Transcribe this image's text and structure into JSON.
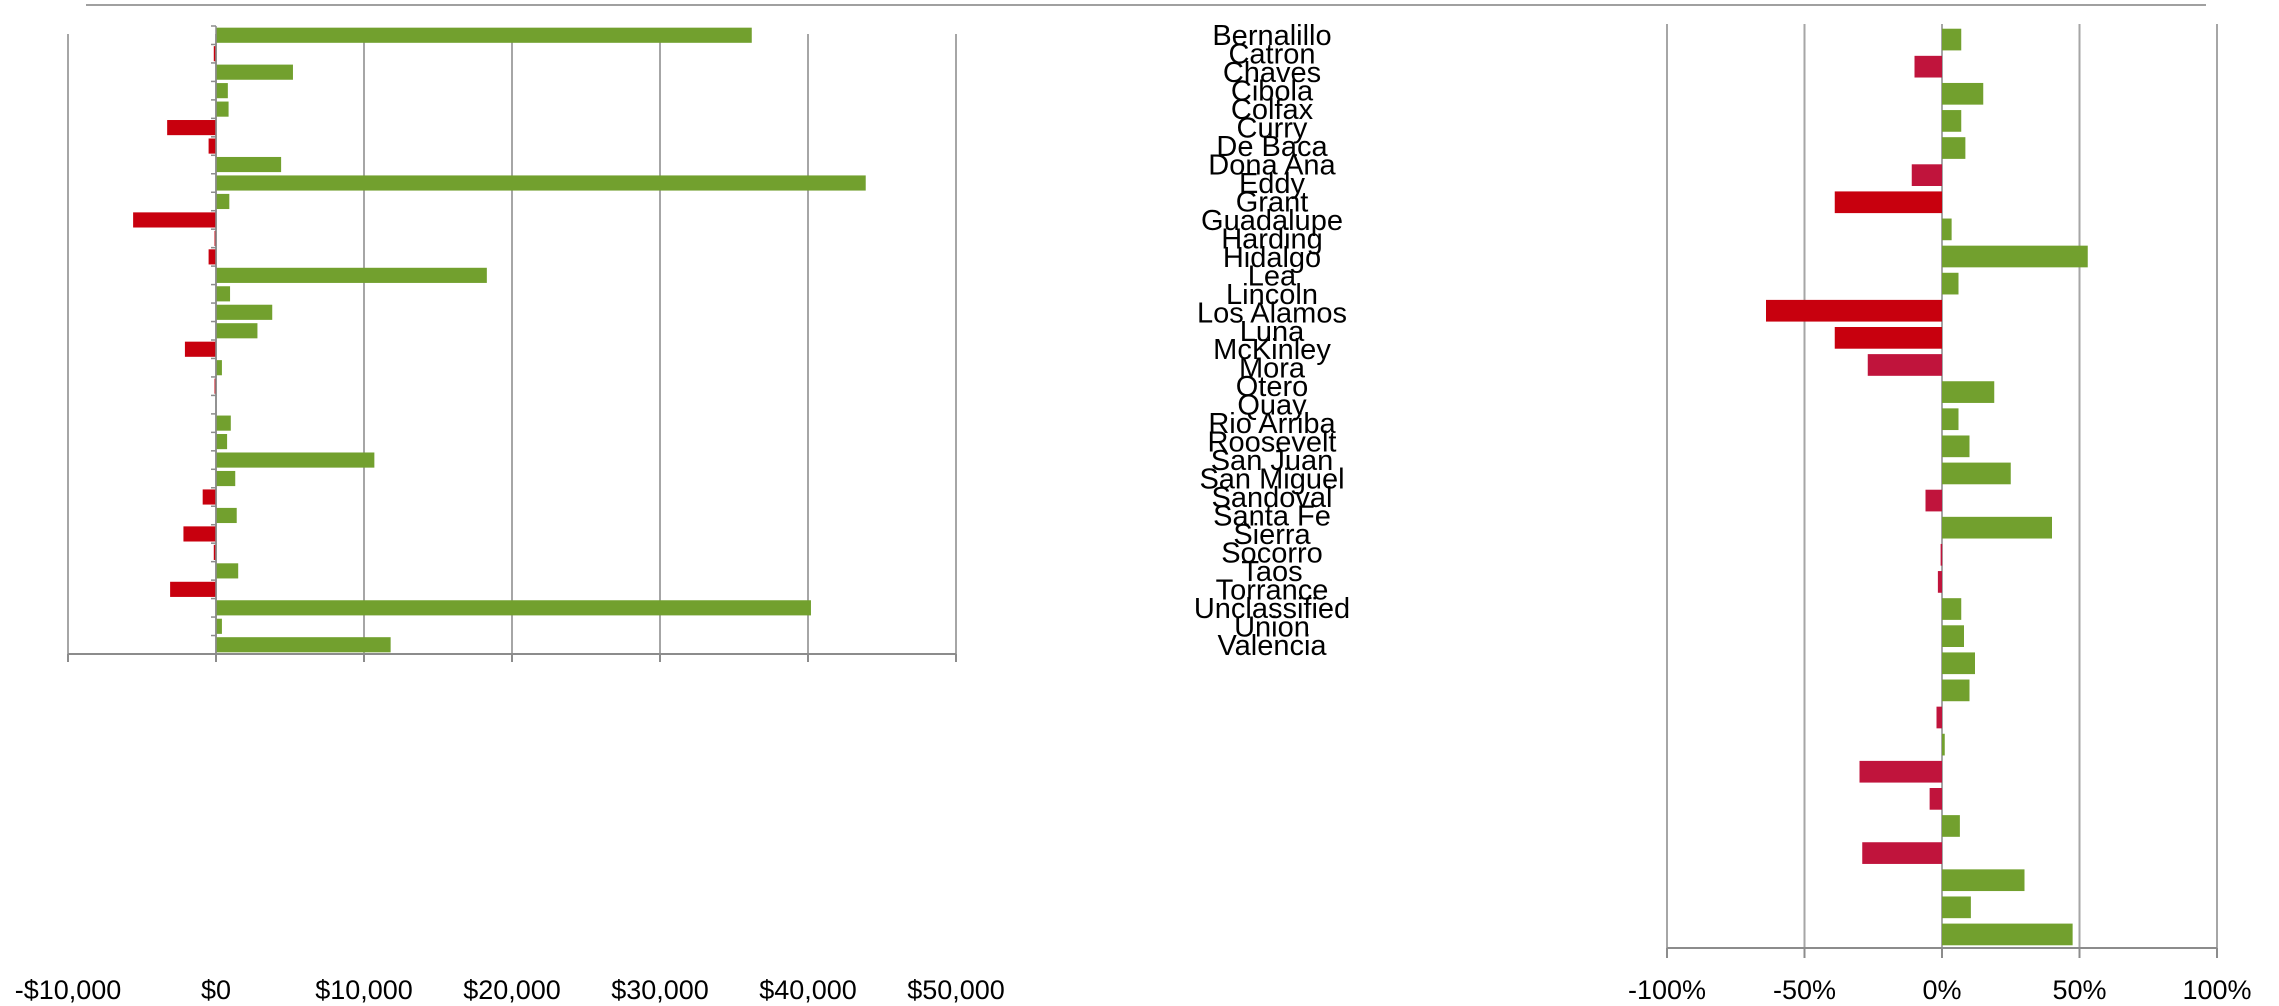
{
  "chart_data": [
    {
      "type": "bar",
      "orientation": "horizontal",
      "title": "",
      "xlabel": "",
      "ylabel": "",
      "xlim": [
        -10000,
        50000
      ],
      "tick_values": [
        -10000,
        0,
        10000,
        20000,
        30000,
        40000,
        50000
      ],
      "tick_labels": [
        "-$10,000",
        "$0",
        "$10,000",
        "$20,000",
        "$30,000",
        "$40,000",
        "$50,000"
      ],
      "grid": true,
      "colors": {
        "positive": "#72a02e",
        "negative": "#c8000e"
      },
      "categories": [
        "Bernalillo",
        "Catron",
        "Chaves",
        "Cibola",
        "Colfax",
        "Curry",
        "De Baca",
        "Dona Ana",
        "Eddy",
        "Grant",
        "Guadalupe",
        "Harding",
        "Hidalgo",
        "Lea",
        "Lincoln",
        "Los Alamos",
        "Luna",
        "McKinley",
        "Mora",
        "Otero",
        "Quay",
        "Rio Arriba",
        "Roosevelt",
        "San Juan",
        "San Miguel",
        "Sandoval",
        "Santa Fe",
        "Sierra",
        "Socorro",
        "Taos",
        "Torrance",
        "Unclassified",
        "Union",
        "Valencia"
      ],
      "values": [
        36200,
        -150,
        5200,
        800,
        850,
        -3300,
        -500,
        4400,
        43900,
        900,
        -5600,
        -100,
        -500,
        18300,
        950,
        3800,
        2800,
        -2100,
        400,
        -100,
        0,
        1000,
        750,
        10700,
        1300,
        -900,
        1400,
        -2200,
        -150,
        1500,
        -3100,
        40200,
        400,
        11800
      ]
    },
    {
      "type": "bar",
      "orientation": "horizontal",
      "title": "",
      "xlabel": "",
      "ylabel": "",
      "xlim": [
        -100,
        100
      ],
      "tick_values": [
        -100,
        -50,
        0,
        50,
        100
      ],
      "tick_labels": [
        "-100%",
        "-50%",
        "0%",
        "50%",
        "100%"
      ],
      "grid": true,
      "colors": {
        "positive": "#72a02e",
        "negative_small": "#c0143c",
        "negative_large": "#c8000e"
      },
      "categories": [
        "Bernalillo",
        "Catron",
        "Chaves",
        "Cibola",
        "Colfax",
        "Curry",
        "De Baca",
        "Dona Ana",
        "Eddy",
        "Grant",
        "Guadalupe",
        "Harding",
        "Hidalgo",
        "Lea",
        "Lincoln",
        "Los Alamos",
        "Luna",
        "McKinley",
        "Mora",
        "Otero",
        "Quay",
        "Rio Arriba",
        "Roosevelt",
        "San Juan",
        "San Miguel",
        "Sandoval",
        "Santa Fe",
        "Sierra",
        "Socorro",
        "Taos",
        "Torrance",
        "Unclassified",
        "Union",
        "Valencia"
      ],
      "values": [
        7,
        -10,
        15,
        7,
        8.5,
        -11,
        -39,
        3.5,
        53,
        6,
        -64,
        -39,
        -27,
        19,
        6,
        10,
        25,
        -6,
        40,
        -0.5,
        -1.5,
        7,
        8,
        12,
        10,
        -2,
        1,
        -30,
        -4.5,
        6.5,
        -29,
        30,
        10.5,
        47.5
      ]
    }
  ]
}
